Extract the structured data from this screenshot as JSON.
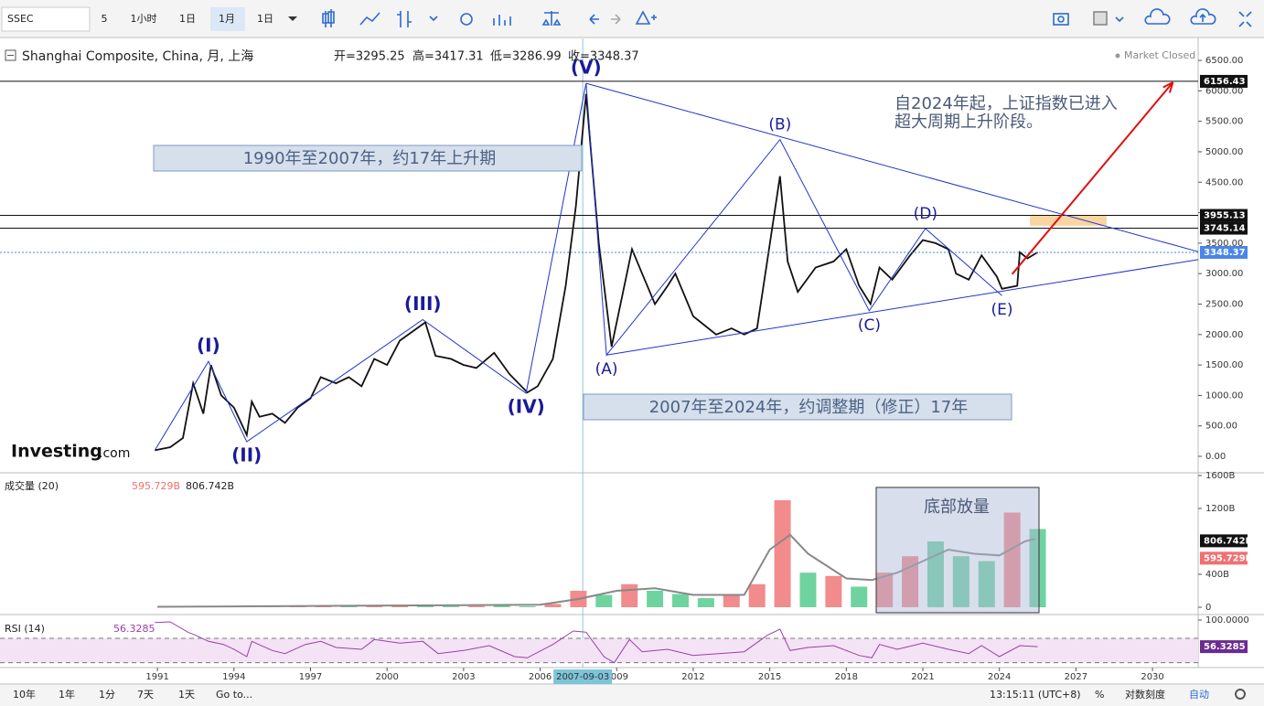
{
  "toolbar": {
    "symbol": "SSEC",
    "items": [
      "5",
      "1小时",
      "1日",
      "1月",
      "1日"
    ]
  },
  "header": {
    "name": "Shanghai Composite, China, 月, 上海",
    "ohlc": [
      "开=3295.25",
      "高=3417.31",
      "低=3286.99",
      "收=3348.37"
    ],
    "status": "Market Closed"
  },
  "logo": [
    "Investing",
    ".com"
  ],
  "annotations": {
    "rise": "1990年至2007年，约17年上升期",
    "correction": "2007年至2024年，约调整期（修正）17年",
    "outlook": [
      "自2024年起，上证指数已进入",
      "超大周期上升阶段。"
    ],
    "volume_note": "底部放量"
  },
  "chart_data": [
    {
      "type": "line",
      "color": "#111111",
      "xlim": [
        1984.83,
        2031.79
      ],
      "ylim": [
        -270,
        6861
      ],
      "xticks": [
        1991,
        1994,
        1997,
        2000,
        2003,
        2006,
        2009,
        2012,
        2015,
        2018,
        2021,
        2024,
        2027,
        2030
      ],
      "yticks": [
        {
          "value": 0,
          "label": "0.00"
        },
        {
          "value": 500,
          "label": "500.00"
        },
        {
          "value": 1000,
          "label": "1000.00"
        },
        {
          "value": 1500,
          "label": "1500.00"
        },
        {
          "value": 2000,
          "label": "2000.00"
        },
        {
          "value": 2500,
          "label": "2500.00"
        },
        {
          "value": 3000,
          "label": "3000.00"
        },
        {
          "value": 3500,
          "label": "3500.00"
        },
        {
          "value": 4000,
          "label": "4000.00"
        },
        {
          "value": 4500,
          "label": "4500.00"
        },
        {
          "value": 5000,
          "label": "5000.00"
        },
        {
          "value": 5500,
          "label": "5500.00"
        },
        {
          "value": 6000,
          "label": "6000.00"
        },
        {
          "value": 6500,
          "label": "6500.00"
        }
      ],
      "x": [
        1990.9,
        1991.5,
        1992.0,
        1992.4,
        1992.8,
        1993.1,
        1993.5,
        1994.0,
        1994.5,
        1994.7,
        1995.0,
        1995.5,
        1996.0,
        1996.5,
        1997.0,
        1997.4,
        1998.0,
        1998.5,
        1999.0,
        1999.5,
        2000.0,
        2000.5,
        2001.5,
        2001.9,
        2002.5,
        2003.0,
        2003.5,
        2004.2,
        2004.8,
        2005.5,
        2005.9,
        2006.5,
        2007.0,
        2007.4,
        2007.8,
        2008.3,
        2008.8,
        2009.6,
        2010.0,
        2010.5,
        2011.0,
        2011.3,
        2012.0,
        2012.9,
        2013.5,
        2014.0,
        2014.5,
        2014.9,
        2015.4,
        2015.7,
        2016.1,
        2016.8,
        2017.5,
        2018.0,
        2018.5,
        2018.95,
        2019.3,
        2019.8,
        2020.5,
        2021.0,
        2021.5,
        2022.0,
        2022.3,
        2022.8,
        2023.3,
        2023.9,
        2024.1,
        2024.7,
        2024.8,
        2025.1,
        2025.5
      ],
      "values": [
        100,
        150,
        300,
        1200,
        700,
        1500,
        1000,
        800,
        350,
        900,
        650,
        700,
        550,
        800,
        950,
        1300,
        1200,
        1300,
        1150,
        1600,
        1500,
        1900,
        2200,
        1650,
        1600,
        1500,
        1450,
        1700,
        1350,
        1050,
        1150,
        1600,
        2800,
        4100,
        5950,
        3500,
        1800,
        3400,
        3000,
        2500,
        2800,
        3000,
        2300,
        2000,
        2100,
        2000,
        2100,
        3200,
        4600,
        3200,
        2700,
        3100,
        3200,
        3400,
        2800,
        2500,
        3100,
        2900,
        3300,
        3550,
        3500,
        3400,
        3000,
        2900,
        3300,
        2950,
        2750,
        2800,
        3350,
        3250,
        3350
      ],
      "price_markers": [
        {
          "value": 6156.43,
          "label": "6156.43",
          "color": "#111111"
        },
        {
          "value": 3955.13,
          "label": "3955.13",
          "color": "#111111"
        },
        {
          "value": 3745.14,
          "label": "3745.14",
          "color": "#111111"
        },
        {
          "value": 3348.37,
          "label": "3348.37",
          "color": "#4a86e8"
        }
      ],
      "waves": {
        "labels": [
          "(I)",
          "(II)",
          "(III)",
          "(IV)",
          "(V)",
          "(A)",
          "(B)",
          "(C)",
          "(D)",
          "(E)"
        ],
        "x": [
          1993.0,
          1994.5,
          2001.4,
          2005.45,
          2007.8,
          2008.6,
          2015.4,
          2018.9,
          2021.1,
          2024.1
        ],
        "values": [
          1558,
          240,
          2245,
          1036,
          6124,
          1664,
          5200,
          2390,
          3740,
          2640
        ],
        "start_x": 1990.9,
        "start_value": 100,
        "color": "#2233cc"
      },
      "trend_lines": [
        {
          "x": [
            2007.8,
            2031.79
          ],
          "values": [
            6124,
            3360
          ]
        },
        {
          "x": [
            2008.6,
            2031.79
          ],
          "values": [
            1664,
            3230
          ]
        }
      ],
      "arrow": {
        "x": [
          2024.5,
          2030.8
        ],
        "values": [
          2990,
          6140
        ],
        "color": "#e01010"
      },
      "zone": {
        "x": [
          2025.2,
          2028.2
        ],
        "values": [
          3785,
          3950
        ],
        "color": "#f9c98a"
      },
      "crosshair": {
        "x": 2007.67,
        "label": "2007-09-03"
      }
    },
    {
      "type": "bar",
      "title": "成交量 (20)",
      "ylim": [
        -89,
        1622
      ],
      "yticks": [
        {
          "value": 0,
          "label": "0"
        },
        {
          "value": 400,
          "label": "400B"
        },
        {
          "value": 1200,
          "label": "1200B"
        },
        {
          "value": 1600,
          "label": "1600B"
        }
      ],
      "x": [
        1991,
        1992,
        1993,
        1994,
        1995,
        1996,
        1997,
        1998,
        1999,
        2000,
        2001,
        2002,
        2003,
        2004,
        2005,
        2006,
        2007,
        2008,
        2009,
        2010,
        2011,
        2012,
        2013,
        2014,
        2015,
        2016,
        2017,
        2018,
        2019,
        2020,
        2021,
        2022,
        2023,
        2024,
        2025
      ],
      "values": [
        3,
        8,
        10,
        8,
        6,
        15,
        18,
        12,
        15,
        22,
        18,
        12,
        14,
        18,
        12,
        40,
        200,
        150,
        280,
        200,
        160,
        110,
        150,
        280,
        1300,
        420,
        380,
        250,
        420,
        620,
        800,
        620,
        560,
        1150,
        950
      ],
      "colors": [
        "#f28b8b",
        "#f28b8b",
        "#6fd3a0",
        "#6fd3a0",
        "#6fd3a0",
        "#f28b8b",
        "#f28b8b",
        "#6fd3a0",
        "#f28b8b",
        "#f28b8b",
        "#6fd3a0",
        "#6fd3a0",
        "#f28b8b",
        "#6fd3a0",
        "#6fd3a0",
        "#f28b8b",
        "#f28b8b",
        "#6fd3a0",
        "#f28b8b",
        "#6fd3a0",
        "#6fd3a0",
        "#6fd3a0",
        "#f28b8b",
        "#f28b8b",
        "#f28b8b",
        "#6fd3a0",
        "#f28b8b",
        "#6fd3a0",
        "#f28b8b",
        "#f28b8b",
        "#6fd3a0",
        "#6fd3a0",
        "#6fd3a0",
        "#f28b8b",
        "#6fd3a0"
      ],
      "ma": {
        "x": [
          1991,
          2006,
          2007.5,
          2009,
          2010.5,
          2012,
          2014,
          2015,
          2015.8,
          2016.5,
          2018,
          2019,
          2020,
          2021,
          2022,
          2023,
          2024,
          2025,
          2025.4
        ],
        "values": [
          5,
          30,
          100,
          200,
          230,
          150,
          150,
          700,
          880,
          650,
          350,
          330,
          420,
          560,
          700,
          650,
          630,
          800,
          830
        ],
        "color": "#888888"
      },
      "markers": [
        {
          "value": 806.742,
          "label": "806.742B",
          "color": "#111111"
        },
        {
          "value": 595.729,
          "label": "595.729B",
          "color": "#f07070"
        }
      ]
    },
    {
      "type": "line",
      "title": "RSI (14)",
      "color": "#9b3fa8",
      "ylim": [
        22,
        107.5
      ],
      "band": [
        30,
        70
      ],
      "yticks": [
        {
          "value": 100,
          "label": "100.0000"
        }
      ],
      "x": [
        1990.9,
        1991.5,
        1992.2,
        1992.5,
        1993,
        1993.6,
        1994,
        1994.5,
        1994.7,
        1995.5,
        1996,
        1996.8,
        1997.4,
        1998,
        1999,
        1999.5,
        2000.5,
        2001.4,
        2002,
        2003,
        2004,
        2005,
        2005.5,
        2006.5,
        2007.3,
        2007.8,
        2008.5,
        2008.9,
        2009.5,
        2010,
        2011,
        2012,
        2013,
        2014,
        2014.9,
        2015.4,
        2015.8,
        2016.5,
        2017.5,
        2018.5,
        2019,
        2019.3,
        2020,
        2021,
        2022,
        2022.8,
        2023.3,
        2024,
        2024.8,
        2025.5
      ],
      "values": [
        96,
        97,
        80,
        75,
        65,
        60,
        52,
        40,
        65,
        50,
        45,
        60,
        65,
        55,
        52,
        68,
        62,
        65,
        45,
        50,
        58,
        40,
        38,
        60,
        82,
        80,
        40,
        30,
        68,
        48,
        52,
        42,
        45,
        48,
        75,
        85,
        50,
        55,
        58,
        42,
        38,
        60,
        52,
        62,
        52,
        45,
        58,
        40,
        58,
        56.3
      ],
      "markers": [
        {
          "value": 56.3285,
          "label": "56.3285",
          "color": "#6a2c91"
        }
      ]
    }
  ],
  "footer": {
    "ranges": [
      "10年",
      "1年",
      "1分",
      "7天",
      "1天"
    ],
    "goto": "Go to...",
    "time": "13:15:11 (UTC+8)",
    "options": [
      "%",
      "对数刻度",
      "自动"
    ]
  }
}
